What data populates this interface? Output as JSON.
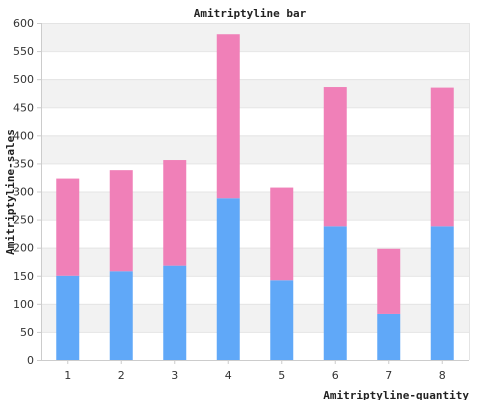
{
  "chart_data": {
    "type": "bar",
    "stacked": true,
    "title": "Amitriptyline bar",
    "xlabel": "Amitriptyline-quantity",
    "ylabel": "Amitriptyline-sales",
    "categories": [
      "1",
      "2",
      "3",
      "4",
      "5",
      "6",
      "7",
      "8"
    ],
    "series": [
      {
        "color": "#60a8f8",
        "values": [
          150,
          158,
          168,
          288,
          142,
          238,
          82,
          238
        ]
      },
      {
        "color": "#f080b8",
        "values": [
          173,
          180,
          188,
          292,
          165,
          248,
          116,
          247
        ]
      }
    ],
    "ylim": [
      0,
      600
    ],
    "yticks": [
      0,
      50,
      100,
      150,
      200,
      250,
      300,
      350,
      400,
      450,
      500,
      550,
      600
    ],
    "grid": true,
    "grid_band_color": "#f2f2f2",
    "axis_color": "#cccccc"
  }
}
